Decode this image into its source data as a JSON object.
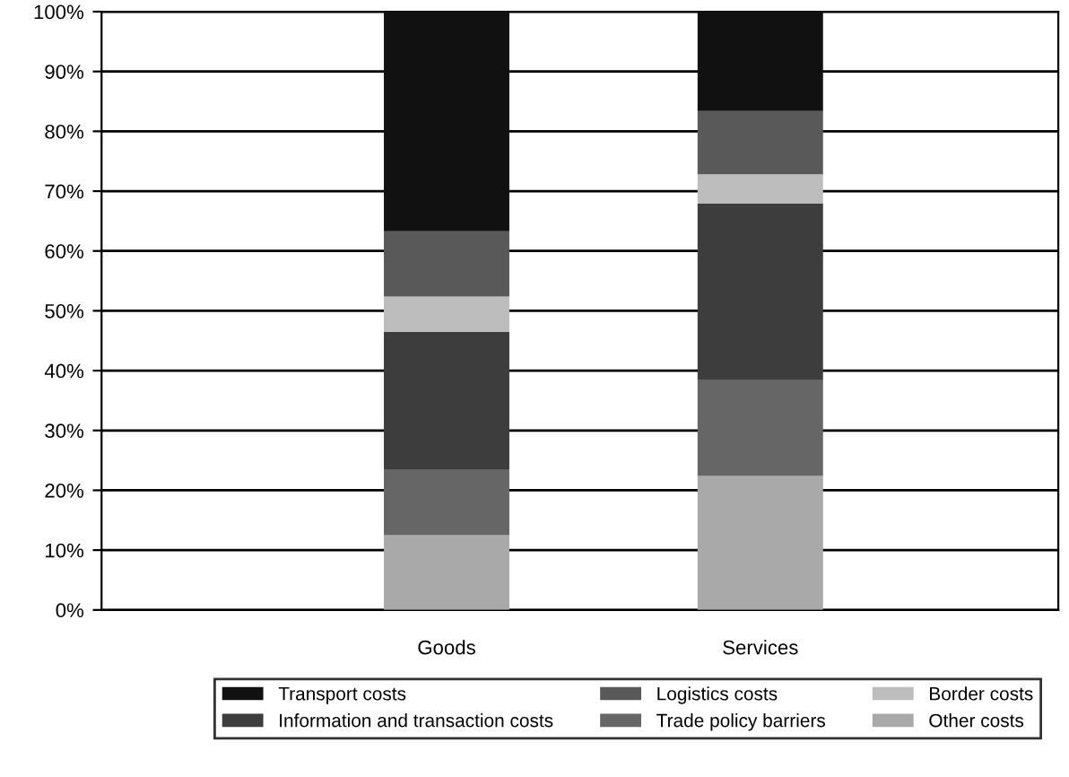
{
  "chart_data": {
    "type": "bar",
    "stacked": true,
    "categories": [
      "Goods",
      "Services"
    ],
    "series": [
      {
        "name": "Other costs",
        "color": "#a9a9a9",
        "values": [
          12.5,
          22.4
        ]
      },
      {
        "name": "Trade policy barriers",
        "color": "#666666",
        "values": [
          10.9,
          16.0
        ]
      },
      {
        "name": "Information and transaction costs",
        "color": "#3d3d3d",
        "values": [
          23.1,
          29.5
        ]
      },
      {
        "name": "Border costs",
        "color": "#bdbdbd",
        "values": [
          5.9,
          4.9
        ]
      },
      {
        "name": "Logistics costs",
        "color": "#595959",
        "values": [
          10.9,
          10.6
        ]
      },
      {
        "name": "Transport costs",
        "color": "#111111",
        "values": [
          36.7,
          16.6
        ]
      }
    ],
    "ylim": [
      0,
      100
    ],
    "yticks": [
      {
        "value": 0,
        "label": "0%"
      },
      {
        "value": 10,
        "label": "10%"
      },
      {
        "value": 20,
        "label": "20%"
      },
      {
        "value": 30,
        "label": "30%"
      },
      {
        "value": 40,
        "label": "40%"
      },
      {
        "value": 50,
        "label": "50%"
      },
      {
        "value": 60,
        "label": "60%"
      },
      {
        "value": 70,
        "label": "70%"
      },
      {
        "value": 80,
        "label": "80%"
      },
      {
        "value": 90,
        "label": "90%"
      },
      {
        "value": 100,
        "label": "100%"
      }
    ],
    "grid": "y",
    "legend": "bottom"
  }
}
